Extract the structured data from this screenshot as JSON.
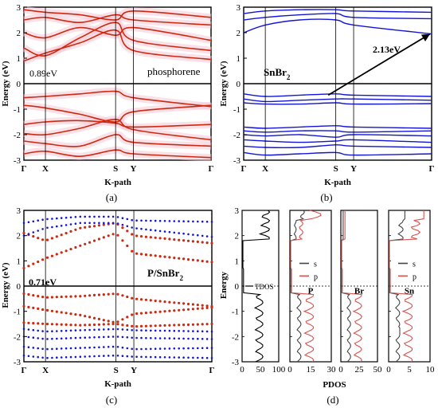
{
  "captions": [
    "(a)",
    "(b)",
    "(c)",
    "(d)"
  ],
  "chart_data": [
    {
      "type": "line",
      "panel": "(a)",
      "xlabel": "K-path",
      "ylabel": "Energy (eV)",
      "x_ticks": [
        "Γ",
        "X",
        "S",
        "Y",
        "Γ"
      ],
      "ylim": [
        -3,
        3
      ],
      "y_ticks": [
        -3,
        -2,
        -1,
        0,
        1,
        2,
        3
      ],
      "annotations": [
        "0.89eV",
        "phosphorene"
      ],
      "colors": {
        "bands": "#cc2a10",
        "shade": "#f6c6d3",
        "fermi": "#000000"
      },
      "series": [
        {
          "band": "v1",
          "values": [
            -0.55,
            -0.5,
            -0.4,
            -0.3,
            -0.55,
            -0.9
          ]
        },
        {
          "band": "v2",
          "values": [
            -0.85,
            -0.95,
            -1.2,
            -1.5,
            -1.1,
            -0.85
          ]
        },
        {
          "band": "v3",
          "values": [
            -1.6,
            -1.5,
            -1.45,
            -1.55,
            -1.7,
            -1.6
          ]
        },
        {
          "band": "v4",
          "values": [
            -1.95,
            -2.0,
            -1.75,
            -1.4,
            -1.8,
            -2.2
          ]
        },
        {
          "band": "v5",
          "values": [
            -2.25,
            -2.35,
            -2.45,
            -2.0,
            -2.3,
            -2.45
          ]
        },
        {
          "band": "v6",
          "values": [
            -2.75,
            -2.65,
            -2.85,
            -2.6,
            -2.75,
            -2.9
          ]
        },
        {
          "band": "c1",
          "values": [
            0.89,
            1.2,
            1.6,
            2.1,
            1.3,
            0.95
          ]
        },
        {
          "band": "c2",
          "values": [
            1.4,
            1.1,
            1.8,
            2.4,
            1.7,
            1.3
          ]
        },
        {
          "band": "c3",
          "values": [
            2.0,
            1.8,
            2.2,
            1.9,
            2.2,
            1.7
          ]
        },
        {
          "band": "c4",
          "values": [
            2.5,
            2.6,
            2.4,
            2.7,
            2.5,
            2.3
          ]
        },
        {
          "band": "c5",
          "values": [
            2.9,
            2.8,
            2.7,
            2.5,
            2.85,
            2.6
          ]
        }
      ]
    },
    {
      "type": "line",
      "panel": "(b)",
      "xlabel": "K-path",
      "ylabel": "Energy (eV)",
      "x_ticks": [
        "Γ",
        "X",
        "S",
        "Y",
        "Γ"
      ],
      "ylim": [
        -3,
        3
      ],
      "y_ticks": [
        -3,
        -2,
        -1,
        0,
        1,
        2,
        3
      ],
      "annotations": [
        "SnBr2",
        "2.13eV"
      ],
      "colors": {
        "bands": "#1414d8",
        "arrow": "#000000"
      },
      "series": [
        {
          "band": "v1",
          "values": [
            -0.4,
            -0.5,
            -0.45,
            -0.4,
            -0.45,
            -0.5
          ]
        },
        {
          "band": "v2",
          "values": [
            -0.6,
            -0.7,
            -0.65,
            -0.6,
            -0.6,
            -0.65
          ]
        },
        {
          "band": "v3",
          "values": [
            -0.75,
            -0.8,
            -0.8,
            -0.75,
            -0.8,
            -0.78
          ]
        },
        {
          "band": "v4",
          "values": [
            -1.7,
            -1.75,
            -1.7,
            -1.65,
            -1.7,
            -1.75
          ]
        },
        {
          "band": "v5",
          "values": [
            -1.85,
            -1.9,
            -1.85,
            -1.85,
            -1.9,
            -1.85
          ]
        },
        {
          "band": "v6",
          "values": [
            -2.0,
            -2.05,
            -2.0,
            -2.1,
            -2.0,
            -2.05
          ]
        },
        {
          "band": "v7",
          "values": [
            -2.2,
            -2.25,
            -2.3,
            -2.25,
            -2.2,
            -2.3
          ]
        },
        {
          "band": "v8",
          "values": [
            -2.45,
            -2.5,
            -2.5,
            -2.4,
            -2.45,
            -2.5
          ]
        },
        {
          "band": "v9",
          "values": [
            -2.7,
            -2.8,
            -2.75,
            -2.7,
            -2.8,
            -2.75
          ]
        },
        {
          "band": "c1",
          "values": [
            2.0,
            2.3,
            2.5,
            2.5,
            2.3,
            1.95
          ]
        },
        {
          "band": "c2",
          "values": [
            2.5,
            2.6,
            2.7,
            2.75,
            2.6,
            2.55
          ]
        },
        {
          "band": "c3",
          "values": [
            2.75,
            2.85,
            2.9,
            2.9,
            2.85,
            2.8
          ]
        }
      ]
    },
    {
      "type": "scatter",
      "panel": "(c)",
      "xlabel": "K-path",
      "ylabel": "Energy (eV)",
      "x_ticks": [
        "Γ",
        "X",
        "S",
        "Y",
        "Γ"
      ],
      "ylim": [
        -3,
        3
      ],
      "y_ticks": [
        -3,
        -2,
        -1,
        0,
        1,
        2,
        3
      ],
      "annotations": [
        "0.71eV",
        "P/SnBr2"
      ],
      "colors": {
        "phosphorene": "#cc2a10",
        "snbr2": "#1414d8"
      },
      "series": [
        {
          "band": "red-v1",
          "values": [
            -0.3,
            -0.45,
            -0.4,
            -0.3,
            -0.5,
            -0.8
          ]
        },
        {
          "band": "red-v2",
          "values": [
            -0.8,
            -0.95,
            -1.15,
            -1.45,
            -1.1,
            -0.85
          ]
        },
        {
          "band": "red-v3",
          "values": [
            -1.45,
            -1.5,
            -1.55,
            -1.5,
            -1.6,
            -1.5
          ]
        },
        {
          "band": "red-c1",
          "values": [
            0.71,
            1.1,
            1.6,
            2.1,
            1.3,
            0.95
          ]
        },
        {
          "band": "red-c2",
          "values": [
            2.1,
            1.8,
            2.3,
            2.5,
            2.0,
            1.7
          ]
        },
        {
          "band": "blue-v1",
          "values": [
            -1.7,
            -1.8,
            -1.75,
            -1.7,
            -1.75,
            -1.8
          ]
        },
        {
          "band": "blue-v2",
          "values": [
            -2.0,
            -2.1,
            -2.05,
            -2.0,
            -2.05,
            -2.1
          ]
        },
        {
          "band": "blue-v3",
          "values": [
            -2.4,
            -2.5,
            -2.45,
            -2.4,
            -2.5,
            -2.45
          ]
        },
        {
          "band": "blue-v4",
          "values": [
            -2.75,
            -2.85,
            -2.8,
            -2.75,
            -2.8,
            -2.85
          ]
        },
        {
          "band": "blue-c1",
          "values": [
            2.0,
            2.3,
            2.5,
            2.5,
            2.3,
            1.95
          ]
        },
        {
          "band": "blue-c2",
          "values": [
            2.5,
            2.65,
            2.75,
            2.75,
            2.6,
            2.55
          ]
        }
      ]
    },
    {
      "type": "line",
      "panel": "(d)",
      "xlabel": "PDOS",
      "ylabel": "Energy",
      "ylim": [
        -3,
        3
      ],
      "y_ticks": [
        -3,
        -2,
        -1,
        0,
        1,
        2,
        3
      ],
      "panels": [
        {
          "name": "TDOS",
          "xlim": [
            0,
            100
          ],
          "x_ticks": [
            "0",
            "50",
            "100"
          ],
          "label": "TDOS"
        },
        {
          "name": "P",
          "xlim": [
            0,
            30
          ],
          "x_ticks": [
            "0",
            "15",
            "30"
          ],
          "label": "P",
          "legend": [
            "s",
            "p"
          ]
        },
        {
          "name": "Br",
          "xlim": [
            0,
            50
          ],
          "x_ticks": [
            "0",
            "25",
            "50"
          ],
          "label": "Br"
        },
        {
          "name": "Sn",
          "xlim": [
            0,
            10
          ],
          "x_ticks": [
            "0",
            "5",
            "10"
          ],
          "label": "Sn",
          "legend": [
            "s",
            "p"
          ]
        }
      ],
      "colors": {
        "tdos": "#000000",
        "s": "#444444",
        "p": "#d9534f"
      }
    }
  ]
}
